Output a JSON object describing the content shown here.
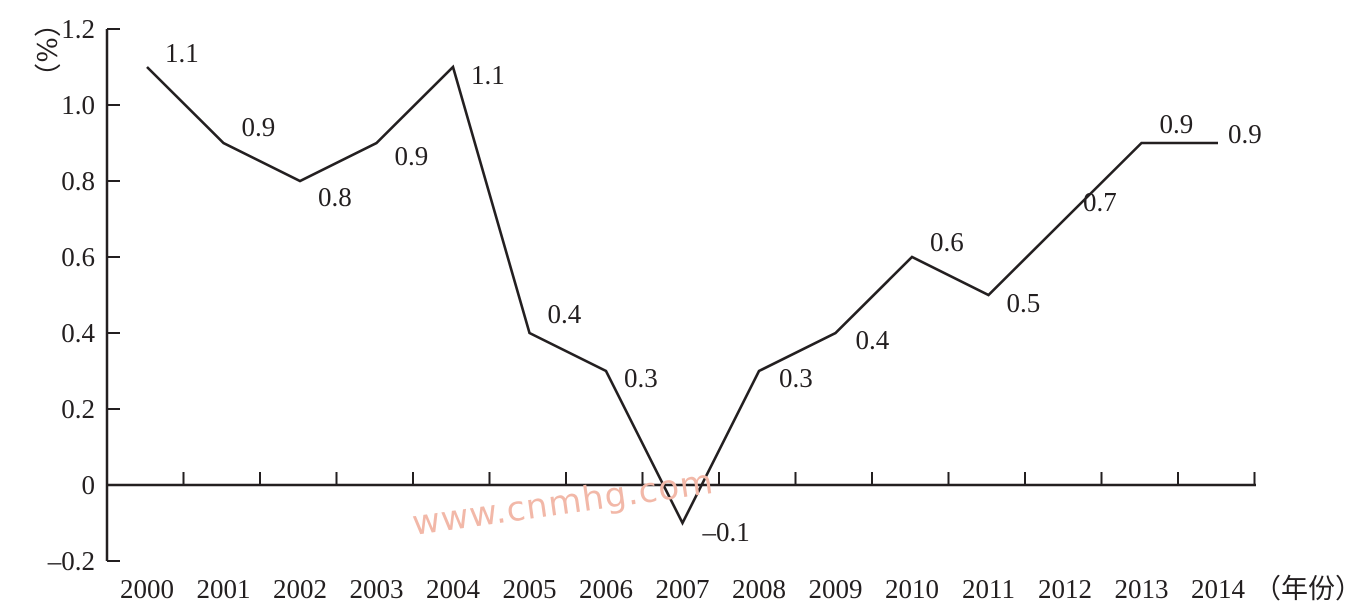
{
  "chart_data": {
    "type": "line",
    "title": "",
    "xlabel": "（年份）",
    "ylabel": "（%）",
    "x": [
      "2000",
      "2001",
      "2002",
      "2003",
      "2004",
      "2005",
      "2006",
      "2007",
      "2008",
      "2009",
      "2010",
      "2011",
      "2012",
      "2013",
      "2014"
    ],
    "series": [
      {
        "values": [
          1.1,
          0.9,
          0.8,
          0.9,
          1.1,
          0.4,
          0.3,
          -0.1,
          0.3,
          0.4,
          0.6,
          0.5,
          0.7,
          0.9,
          0.9
        ],
        "labels": [
          "1.1",
          "0.9",
          "0.8",
          "0.9",
          "1.1",
          "0.4",
          "0.3",
          "–0.1",
          "0.3",
          "0.4",
          "0.6",
          "0.5",
          "0.7",
          "0.9",
          "0.9"
        ],
        "color": "#231f20"
      }
    ],
    "yticks": [
      -0.2,
      0,
      0.2,
      0.4,
      0.6,
      0.8,
      1.0,
      1.2
    ],
    "ytick_labels": [
      "–0.2",
      "0",
      "0.2",
      "0.4",
      "0.6",
      "0.8",
      "1.0",
      "1.2"
    ],
    "ylim": [
      -0.2,
      1.2
    ],
    "grid": false,
    "legend": "none"
  },
  "watermark": "www.cnmhg.com"
}
